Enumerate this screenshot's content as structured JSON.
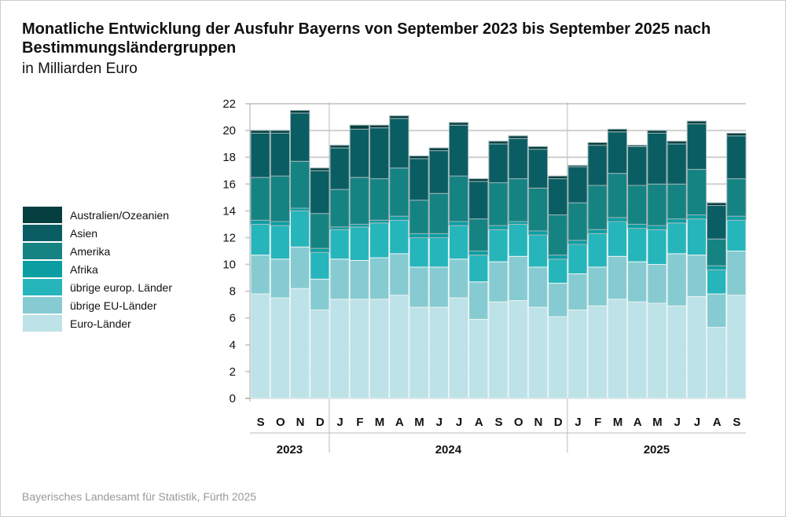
{
  "chart_data": {
    "type": "bar",
    "stacked": true,
    "title": "Monatliche Entwicklung der Ausfuhr Bayerns von September 2023 bis September 2025 nach Bestimmungsländergruppen",
    "subtitle": "in Milliarden Euro",
    "ylim": [
      0,
      22
    ],
    "yticks": [
      0,
      2,
      4,
      6,
      8,
      10,
      12,
      14,
      16,
      18,
      20,
      22
    ],
    "categories": [
      "S",
      "O",
      "N",
      "D",
      "J",
      "F",
      "M",
      "A",
      "M",
      "J",
      "J",
      "A",
      "S",
      "O",
      "N",
      "D",
      "J",
      "F",
      "M",
      "A",
      "M",
      "J",
      "J",
      "A",
      "S"
    ],
    "years": [
      {
        "label": "2023",
        "count": 4
      },
      {
        "label": "2024",
        "count": 12
      },
      {
        "label": "2025",
        "count": 9
      }
    ],
    "series": [
      {
        "name": "Euro-Länder",
        "color": "#bde2e7",
        "values": [
          7.8,
          7.5,
          8.2,
          6.6,
          7.4,
          7.4,
          7.4,
          7.7,
          6.8,
          6.8,
          7.5,
          5.9,
          7.2,
          7.3,
          6.8,
          6.1,
          6.6,
          6.9,
          7.4,
          7.2,
          7.1,
          6.9,
          7.6,
          5.3,
          7.7
        ]
      },
      {
        "name": "übrige EU-Länder",
        "color": "#87cbd2",
        "values": [
          2.9,
          2.9,
          3.1,
          2.3,
          3.0,
          2.9,
          3.1,
          3.1,
          3.0,
          3.0,
          2.9,
          2.8,
          3.0,
          3.3,
          3.0,
          2.5,
          2.7,
          2.9,
          3.2,
          3.0,
          2.9,
          3.9,
          3.1,
          2.5,
          3.3
        ]
      },
      {
        "name": "übrige europ. Länder",
        "color": "#26b5bb",
        "values": [
          2.3,
          2.5,
          2.7,
          2.0,
          2.2,
          2.5,
          2.6,
          2.5,
          2.2,
          2.2,
          2.5,
          2.0,
          2.4,
          2.4,
          2.4,
          1.8,
          2.2,
          2.5,
          2.6,
          2.5,
          2.6,
          2.3,
          2.7,
          1.8,
          2.3
        ]
      },
      {
        "name": "Afrika",
        "color": "#0a9ea3",
        "values": [
          0.3,
          0.3,
          0.2,
          0.3,
          0.2,
          0.2,
          0.2,
          0.3,
          0.3,
          0.3,
          0.3,
          0.3,
          0.3,
          0.2,
          0.3,
          0.3,
          0.3,
          0.3,
          0.3,
          0.3,
          0.3,
          0.3,
          0.3,
          0.3,
          0.3
        ]
      },
      {
        "name": "Amerika",
        "color": "#168383",
        "values": [
          3.2,
          3.4,
          3.5,
          2.6,
          2.8,
          3.5,
          3.1,
          3.6,
          2.5,
          3.0,
          3.4,
          2.4,
          3.2,
          3.2,
          3.2,
          3.0,
          2.8,
          3.3,
          3.3,
          2.9,
          3.1,
          2.6,
          3.4,
          2.0,
          2.8
        ]
      },
      {
        "name": "Asien",
        "color": "#0a5e63",
        "values": [
          3.3,
          3.2,
          3.6,
          3.2,
          3.1,
          3.6,
          3.8,
          3.7,
          3.1,
          3.2,
          3.8,
          2.8,
          2.9,
          3.0,
          2.9,
          2.7,
          2.7,
          3.0,
          3.1,
          2.9,
          3.8,
          3.0,
          3.4,
          2.5,
          3.2
        ]
      },
      {
        "name": "Australien/Ozeanien",
        "color": "#053f40",
        "values": [
          0.2,
          0.2,
          0.2,
          0.2,
          0.2,
          0.3,
          0.2,
          0.2,
          0.2,
          0.2,
          0.2,
          0.2,
          0.2,
          0.2,
          0.2,
          0.2,
          0.1,
          0.2,
          0.2,
          0.1,
          0.2,
          0.2,
          0.2,
          0.2,
          0.2
        ]
      }
    ]
  },
  "source": "Bayerisches Landesamt für Statistik, Fürth 2025"
}
